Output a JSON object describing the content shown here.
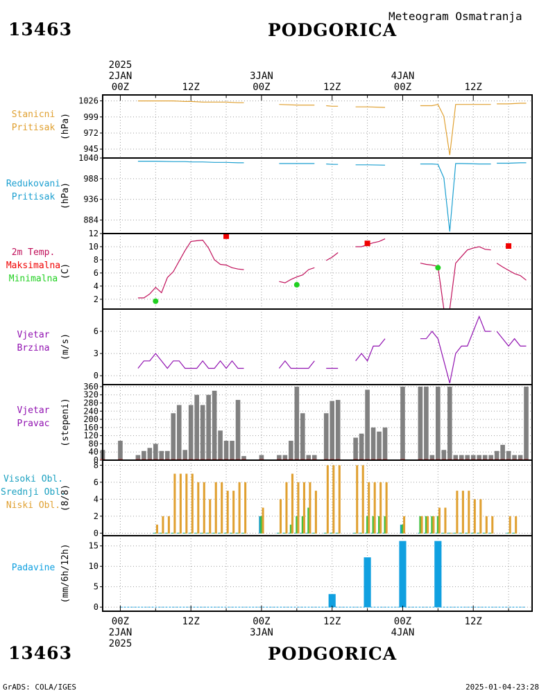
{
  "header": {
    "station_id": "13463",
    "station_name": "PODGORICA",
    "subtitle": "Meteogram Osmatranja"
  },
  "footer": {
    "station_id": "13463",
    "station_name": "PODGORICA",
    "credit": "GrADS: COLA/IGES",
    "timestamp": "2025-01-04-23:28"
  },
  "colors": {
    "pressure": "#e0a030",
    "reduced_pressure": "#1a9fd0",
    "temperature": "#c0105a",
    "max_temp": "#f00000",
    "min_temp": "#20d020",
    "wind": "#9010b0",
    "wind_dir_bar": "#808080",
    "high_cloud": "#1aa0c0",
    "mid_cloud": "#40c040",
    "low_cloud": "#e0a030",
    "precip": "#10a0e0"
  },
  "time_axis": {
    "top_labels": [
      {
        "t": 0,
        "lines": [
          "2025",
          "2JAN",
          "00Z"
        ]
      },
      {
        "t": 12,
        "lines": [
          "12Z"
        ]
      },
      {
        "t": 24,
        "lines": [
          "3JAN",
          "00Z"
        ]
      },
      {
        "t": 36,
        "lines": [
          "12Z"
        ]
      },
      {
        "t": 48,
        "lines": [
          "4JAN",
          "00Z"
        ]
      },
      {
        "t": 60,
        "lines": [
          "12Z"
        ]
      }
    ],
    "bottom_labels": [
      {
        "t": 0,
        "lines": [
          "00Z",
          "2JAN",
          "2025"
        ]
      },
      {
        "t": 12,
        "lines": [
          "12Z"
        ]
      },
      {
        "t": 24,
        "lines": [
          "00Z",
          "3JAN"
        ]
      },
      {
        "t": 36,
        "lines": [
          "12Z"
        ]
      },
      {
        "t": 48,
        "lines": [
          "00Z",
          "4JAN"
        ]
      },
      {
        "t": 60,
        "lines": [
          "12Z"
        ]
      }
    ],
    "range_hours": [
      -3,
      70
    ]
  },
  "chart_data": [
    {
      "id": "station_pressure",
      "type": "line",
      "label_lines": [
        {
          "text": "Stanicni",
          "color": "#e0a030"
        },
        {
          "text": "Pritisak",
          "color": "#e0a030"
        }
      ],
      "ylabel": "(hPa)",
      "ylim": [
        930,
        1036
      ],
      "yticks": [
        1026,
        999,
        972,
        945
      ],
      "series": [
        {
          "color": "#e0a030",
          "x": [
            3,
            6,
            9,
            11,
            12,
            14,
            16,
            18,
            20,
            21
          ],
          "y": [
            1026,
            1026,
            1026,
            1025,
            1025,
            1024,
            1024,
            1024,
            1023,
            1023
          ]
        },
        {
          "color": "#e0a030",
          "x": [
            27,
            30,
            33
          ],
          "y": [
            1020,
            1019,
            1019
          ]
        },
        {
          "color": "#e0a030",
          "x": [
            35,
            36,
            37
          ],
          "y": [
            1018,
            1017,
            1017
          ]
        },
        {
          "color": "#e0a030",
          "x": [
            40,
            42,
            45
          ],
          "y": [
            1016,
            1016,
            1015
          ]
        },
        {
          "color": "#e0a030",
          "x": [
            51,
            53,
            54,
            55,
            56,
            57,
            58,
            61,
            63
          ],
          "y": [
            1018,
            1018,
            1020,
            1000,
            935,
            1020,
            1020,
            1020,
            1020
          ]
        },
        {
          "color": "#e0a030",
          "x": [
            64,
            66,
            68,
            69
          ],
          "y": [
            1021,
            1021,
            1022,
            1022
          ]
        }
      ]
    },
    {
      "id": "reduced_pressure",
      "type": "line",
      "label_lines": [
        {
          "text": "Redukovani",
          "color": "#1a9fd0"
        },
        {
          "text": "Pritisak",
          "color": "#1a9fd0"
        }
      ],
      "ylabel": "(hPa)",
      "ylim": [
        850,
        1040
      ],
      "yticks": [
        1040,
        988,
        936,
        884
      ],
      "series": [
        {
          "color": "#1a9fd0",
          "x": [
            3,
            6,
            9,
            11,
            12,
            14,
            16,
            18,
            20,
            21
          ],
          "y": [
            1032,
            1032,
            1031,
            1031,
            1030,
            1030,
            1029,
            1029,
            1028,
            1028
          ]
        },
        {
          "color": "#1a9fd0",
          "x": [
            27,
            30,
            33
          ],
          "y": [
            1026,
            1026,
            1026
          ]
        },
        {
          "color": "#1a9fd0",
          "x": [
            35,
            36,
            37
          ],
          "y": [
            1025,
            1024,
            1024
          ]
        },
        {
          "color": "#1a9fd0",
          "x": [
            40,
            42,
            45
          ],
          "y": [
            1023,
            1023,
            1022
          ]
        },
        {
          "color": "#1a9fd0",
          "x": [
            51,
            53,
            54,
            55,
            56,
            57,
            58,
            61,
            63
          ],
          "y": [
            1025,
            1025,
            1024,
            990,
            855,
            1026,
            1026,
            1025,
            1025
          ]
        },
        {
          "color": "#1a9fd0",
          "x": [
            64,
            66,
            68,
            69
          ],
          "y": [
            1027,
            1027,
            1028,
            1028
          ]
        }
      ]
    },
    {
      "id": "temperature",
      "type": "line",
      "label_lines": [
        {
          "text": "2m Temp.",
          "color": "#c0105a"
        },
        {
          "text": "Maksimalna",
          "color": "#f00000"
        },
        {
          "text": "Minimalna",
          "color": "#20d020"
        }
      ],
      "ylabel": "(C)",
      "ylim": [
        0.5,
        12
      ],
      "yticks": [
        12,
        10,
        8,
        6,
        4,
        2
      ],
      "series": [
        {
          "color": "#c0105a",
          "x": [
            3,
            4,
            5,
            6,
            7,
            8,
            9,
            10,
            11,
            12,
            13,
            14,
            15,
            16,
            17,
            18,
            19,
            20,
            21
          ],
          "y": [
            2.2,
            2.2,
            2.8,
            3.8,
            3.0,
            5.3,
            6.2,
            7.8,
            9.4,
            10.8,
            10.9,
            11.0,
            9.8,
            8.0,
            7.3,
            7.2,
            6.8,
            6.6,
            6.5
          ]
        },
        {
          "color": "#c0105a",
          "x": [
            27,
            28,
            29,
            30,
            31,
            32,
            33
          ],
          "y": [
            4.7,
            4.5,
            5.0,
            5.4,
            5.7,
            6.5,
            6.8
          ]
        },
        {
          "color": "#c0105a",
          "x": [
            35,
            36,
            37
          ],
          "y": [
            7.9,
            8.4,
            9.1
          ]
        },
        {
          "color": "#c0105a",
          "x": [
            40,
            41,
            42,
            43,
            44,
            45
          ],
          "y": [
            10.0,
            10.0,
            10.3,
            10.6,
            10.8,
            11.2
          ]
        },
        {
          "color": "#c0105a",
          "x": [
            51,
            52,
            53,
            54,
            55,
            56,
            57,
            58,
            59,
            60,
            61,
            62,
            63
          ],
          "y": [
            7.5,
            7.3,
            7.2,
            7.0,
            0.5,
            0.5,
            7.5,
            8.5,
            9.5,
            9.8,
            10.0,
            9.6,
            9.5
          ]
        },
        {
          "color": "#c0105a",
          "x": [
            64,
            65,
            66,
            67,
            68,
            69
          ],
          "y": [
            7.5,
            6.9,
            6.4,
            5.9,
            5.6,
            4.9
          ]
        }
      ],
      "max_markers": {
        "color": "#f00000",
        "x": [
          18,
          42,
          66
        ],
        "y": [
          11.6,
          10.5,
          10.1
        ]
      },
      "min_markers": {
        "color": "#20d020",
        "x": [
          6,
          30,
          54
        ],
        "y": [
          1.7,
          4.2,
          6.8
        ]
      }
    },
    {
      "id": "wind_speed",
      "type": "line",
      "label_lines": [
        {
          "text": "Vjetar",
          "color": "#9010b0"
        },
        {
          "text": "Brzina",
          "color": "#9010b0"
        }
      ],
      "ylabel": "(m/s)",
      "ylim": [
        -1.2,
        9
      ],
      "yticks": [
        6,
        3,
        0
      ],
      "series": [
        {
          "color": "#9010b0",
          "x": [
            3,
            4,
            5,
            6,
            7,
            8,
            9,
            10,
            11,
            12,
            13,
            14,
            15,
            16,
            17,
            18,
            19,
            20,
            21
          ],
          "y": [
            1,
            2,
            2,
            3,
            2,
            1,
            2,
            2,
            1,
            1,
            1,
            2,
            1,
            1,
            2,
            1,
            2,
            1,
            1
          ]
        },
        {
          "color": "#9010b0",
          "x": [
            27,
            28,
            29,
            30,
            31,
            32,
            33
          ],
          "y": [
            1,
            2,
            1,
            1,
            1,
            1,
            2
          ]
        },
        {
          "color": "#9010b0",
          "x": [
            35,
            36,
            37
          ],
          "y": [
            1,
            1,
            1
          ]
        },
        {
          "color": "#9010b0",
          "x": [
            40,
            41,
            42,
            43,
            44,
            45
          ],
          "y": [
            2,
            3,
            2,
            4,
            4,
            5
          ]
        },
        {
          "color": "#9010b0",
          "x": [
            51,
            52,
            53,
            54,
            55,
            56,
            57,
            58,
            59,
            60,
            61,
            62,
            63
          ],
          "y": [
            5,
            5,
            6,
            5,
            2,
            -1,
            3,
            4,
            4,
            6,
            8,
            6,
            6
          ]
        },
        {
          "color": "#9010b0",
          "x": [
            64,
            65,
            66,
            67,
            68,
            69
          ],
          "y": [
            6,
            5,
            4,
            5,
            4,
            4
          ]
        }
      ]
    },
    {
      "id": "wind_direction",
      "type": "bar",
      "label_lines": [
        {
          "text": "Vjetar",
          "color": "#9010b0"
        },
        {
          "text": "Pravac",
          "color": "#9010b0"
        }
      ],
      "ylabel": "(stepeni)",
      "ylim": [
        0,
        370
      ],
      "yticks": [
        360,
        320,
        280,
        240,
        200,
        160,
        120,
        80,
        40,
        0
      ],
      "bar_color": "#808080",
      "x": [
        -3,
        0,
        3,
        4,
        5,
        6,
        7,
        8,
        9,
        10,
        11,
        12,
        13,
        14,
        15,
        16,
        17,
        18,
        19,
        20,
        21,
        24,
        27,
        28,
        29,
        30,
        31,
        32,
        33,
        35,
        36,
        37,
        40,
        41,
        42,
        43,
        44,
        45,
        48,
        51,
        52,
        53,
        54,
        55,
        56,
        57,
        58,
        59,
        60,
        61,
        62,
        63,
        64,
        65,
        66,
        67,
        68,
        69
      ],
      "values": [
        50,
        95,
        25,
        45,
        60,
        80,
        45,
        45,
        230,
        270,
        50,
        270,
        320,
        270,
        320,
        340,
        145,
        95,
        95,
        295,
        20,
        25,
        25,
        25,
        95,
        360,
        230,
        25,
        25,
        230,
        290,
        295,
        110,
        130,
        345,
        160,
        140,
        160,
        360,
        360,
        360,
        25,
        360,
        50,
        360,
        25,
        25,
        25,
        25,
        25,
        25,
        25,
        45,
        75,
        45,
        25,
        25,
        360
      ]
    },
    {
      "id": "clouds",
      "type": "bar",
      "label_lines": [
        {
          "text": "Visoki Obl.",
          "color": "#1aa0c0"
        },
        {
          "text": "Srednji Obl.",
          "color": "#1aa0c0"
        },
        {
          "text": "Niski Obl.",
          "color": "#e0a030"
        }
      ],
      "ylabel": "(8/8)",
      "ylim": [
        -0.3,
        8.6
      ],
      "yticks": [
        8,
        6,
        4,
        2,
        0
      ],
      "x": [
        6,
        7,
        8,
        9,
        10,
        11,
        12,
        13,
        14,
        15,
        16,
        17,
        18,
        19,
        20,
        21,
        24,
        27,
        28,
        29,
        30,
        31,
        32,
        33,
        35,
        36,
        37,
        40,
        41,
        42,
        43,
        44,
        45,
        48,
        51,
        52,
        53,
        54,
        55,
        56,
        57,
        58,
        59,
        60,
        61,
        62,
        63,
        66,
        67
      ],
      "series": [
        {
          "name": "Visoki Obl.",
          "color": "#1aa0c0",
          "values": [
            0,
            0,
            0,
            0,
            0,
            0,
            0,
            0,
            0,
            0,
            0,
            0,
            0,
            0,
            0,
            0,
            2,
            0,
            0,
            0,
            0,
            0,
            0,
            0,
            0,
            0,
            0,
            0,
            0,
            0,
            0,
            0,
            0,
            1,
            0,
            0,
            0,
            0,
            0,
            0,
            0,
            0,
            0,
            0,
            0,
            0,
            0,
            0,
            0
          ]
        },
        {
          "name": "Srednji Obl.",
          "color": "#40c040",
          "values": [
            0,
            0,
            0,
            0,
            0,
            0,
            0,
            0,
            0,
            0,
            0,
            0,
            0,
            0,
            0,
            0,
            2,
            0,
            0,
            1,
            2,
            2,
            3,
            0,
            0,
            0,
            0,
            0,
            0,
            2,
            2,
            2,
            2,
            1,
            2,
            2,
            2,
            2,
            0,
            0,
            0,
            0,
            0,
            0,
            0,
            0,
            0,
            0,
            0
          ]
        },
        {
          "name": "Niski Obl.",
          "color": "#e0a030",
          "values": [
            1,
            2,
            2,
            7,
            7,
            7,
            7,
            6,
            6,
            4,
            6,
            6,
            5,
            5,
            6,
            6,
            3,
            4,
            6,
            7,
            6,
            6,
            6,
            5,
            8,
            8,
            8,
            8,
            8,
            6,
            6,
            6,
            6,
            2,
            2,
            2,
            2,
            3,
            3,
            0,
            5,
            5,
            5,
            4,
            4,
            2,
            2,
            2,
            2
          ]
        }
      ]
    },
    {
      "id": "precipitation",
      "type": "bar",
      "label_lines": [
        {
          "text": "Padavine",
          "color": "#10a0e0"
        }
      ],
      "ylabel": "(mm/6h/12h)",
      "ylim": [
        -1,
        17.5
      ],
      "yticks": [
        15,
        10,
        5,
        0
      ],
      "bar_color": "#10a0e0",
      "x": [
        36,
        42,
        48,
        54
      ],
      "values": [
        3.2,
        12.2,
        16.2,
        16.2
      ]
    }
  ]
}
